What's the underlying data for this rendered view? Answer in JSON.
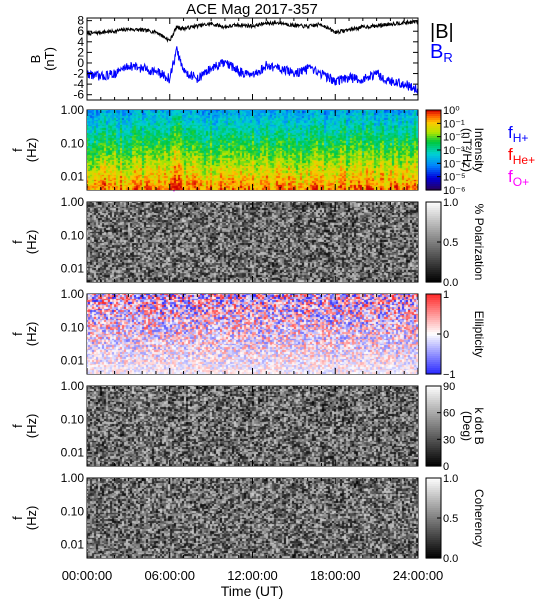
{
  "chart_data": {
    "title": "ACE Mag 2017-357",
    "xlabel": "Time (UT)",
    "x_ticks": [
      "00:00:00",
      "06:00:00",
      "12:00:00",
      "18:00:00",
      "24:00:00"
    ],
    "x_range_hours": [
      0,
      24
    ],
    "panels": [
      {
        "id": "mag",
        "type": "line",
        "ylabel": "B",
        "yunit": "(nT)",
        "ylim": [
          -7,
          8.5
        ],
        "yticks": [
          "8",
          "6",
          "4",
          "2",
          "0",
          "-2",
          "-4",
          "-6"
        ],
        "ytick_values": [
          8,
          6,
          4,
          2,
          0,
          -2,
          -4,
          -6
        ],
        "legend": [
          {
            "label": "|B|",
            "color": "#000000"
          },
          {
            "label": "B_R",
            "label_main": "B",
            "label_sub": "R",
            "color": "#0000ff"
          }
        ],
        "series": [
          {
            "name": "|B|",
            "color": "#000000",
            "points": [
              [
                0,
                5.5
              ],
              [
                1,
                5.8
              ],
              [
                2,
                6.0
              ],
              [
                3,
                6.4
              ],
              [
                4,
                6.2
              ],
              [
                5,
                5.9
              ],
              [
                6,
                4.2
              ],
              [
                6.5,
                6.8
              ],
              [
                7,
                6.5
              ],
              [
                8,
                7.0
              ],
              [
                9,
                7.4
              ],
              [
                10,
                6.8
              ],
              [
                11,
                7.2
              ],
              [
                12,
                7.0
              ],
              [
                13,
                7.5
              ],
              [
                14,
                7.6
              ],
              [
                15,
                7.1
              ],
              [
                16,
                6.9
              ],
              [
                17,
                7.3
              ],
              [
                18,
                5.8
              ],
              [
                19,
                6.3
              ],
              [
                20,
                6.8
              ],
              [
                21,
                7.0
              ],
              [
                22,
                7.4
              ],
              [
                23,
                7.6
              ],
              [
                24,
                7.8
              ]
            ]
          },
          {
            "name": "B_R",
            "color": "#0000ff",
            "points": [
              [
                0,
                -2.0
              ],
              [
                1,
                -2.6
              ],
              [
                2,
                -2.0
              ],
              [
                3,
                -0.5
              ],
              [
                4,
                -1.0
              ],
              [
                5,
                -1.6
              ],
              [
                6,
                -3.0
              ],
              [
                6.5,
                2.5
              ],
              [
                7,
                -1.5
              ],
              [
                8,
                -3.0
              ],
              [
                9,
                -1.0
              ],
              [
                10,
                0.0
              ],
              [
                11,
                -1.5
              ],
              [
                12,
                -2.6
              ],
              [
                13,
                -0.5
              ],
              [
                14,
                -1.0
              ],
              [
                15,
                -2.0
              ],
              [
                16,
                -1.2
              ],
              [
                17,
                -2.0
              ],
              [
                18,
                -3.5
              ],
              [
                19,
                -2.8
              ],
              [
                20,
                -3.2
              ],
              [
                21,
                -2.0
              ],
              [
                22,
                -3.5
              ],
              [
                23,
                -4.0
              ],
              [
                24,
                -5.0
              ]
            ]
          }
        ]
      },
      {
        "id": "intensity",
        "type": "heatmap",
        "ylabel": "f",
        "yunit": "(Hz)",
        "colorbar_title": "Intensity",
        "colorbar_unit": "(nT²/Hz)",
        "colorbar_ticks": [
          "10⁰",
          "10⁻¹",
          "10⁻²",
          "10⁻³",
          "10⁻⁴",
          "10⁻⁵",
          "10⁻⁶"
        ],
        "colormap": "rainbow",
        "legend": [
          {
            "label": "f_H+",
            "label_main": "f",
            "label_sub": "H+",
            "color": "#0000ff"
          },
          {
            "label": "f_He+",
            "label_main": "f",
            "label_sub": "He+",
            "color": "#ff0000"
          },
          {
            "label": "f_O+",
            "label_main": "f",
            "label_sub": "O+",
            "color": "#ff00ff"
          }
        ]
      },
      {
        "id": "polarization",
        "type": "heatmap",
        "ylabel": "f",
        "yunit": "(Hz)",
        "colorbar_title": "% Polarization",
        "colorbar_unit": "",
        "colorbar_ticks": [
          "1.0",
          "0.5",
          "0.0"
        ],
        "colormap": "gray"
      },
      {
        "id": "ellipticity",
        "type": "heatmap",
        "ylabel": "f",
        "yunit": "(Hz)",
        "colorbar_title": "Ellipticity",
        "colorbar_unit": "",
        "colorbar_ticks": [
          "1",
          "0",
          "−1"
        ],
        "colormap": "bwr"
      },
      {
        "id": "kdotb",
        "type": "heatmap",
        "ylabel": "f",
        "yunit": "(Hz)",
        "colorbar_title": "k dot B",
        "colorbar_unit": "(Deg)",
        "colorbar_ticks": [
          "90",
          "60",
          "30",
          "0"
        ],
        "colormap": "gray"
      },
      {
        "id": "coherency",
        "type": "heatmap",
        "ylabel": "f",
        "yunit": "(Hz)",
        "colorbar_title": "Coherency",
        "colorbar_unit": "",
        "colorbar_ticks": [
          "1.0",
          "0.5",
          "0.0"
        ],
        "colormap": "gray"
      }
    ],
    "frequency_axis": {
      "scale": "log",
      "ylim_hz": [
        0.004,
        1.0
      ],
      "yticks": [
        "1.00",
        "0.10",
        "0.01"
      ],
      "ytick_values": [
        1.0,
        0.1,
        0.01
      ]
    },
    "gyrofrequency_curves": [
      {
        "name": "f_H+",
        "color": "#0000ff",
        "points": [
          [
            0,
            0.08
          ],
          [
            2,
            0.085
          ],
          [
            4,
            0.095
          ],
          [
            6,
            0.09
          ],
          [
            6.3,
            0.07
          ],
          [
            6.6,
            0.1
          ],
          [
            7,
            0.085
          ],
          [
            8,
            0.095
          ],
          [
            10,
            0.1
          ],
          [
            12,
            0.095
          ],
          [
            14,
            0.105
          ],
          [
            16,
            0.1
          ],
          [
            18,
            0.085
          ],
          [
            20,
            0.095
          ],
          [
            22,
            0.105
          ],
          [
            24,
            0.11
          ]
        ]
      },
      {
        "name": "f_He+",
        "color": "#ff0000",
        "points": [
          [
            0,
            0.02
          ],
          [
            2,
            0.021
          ],
          [
            4,
            0.024
          ],
          [
            6,
            0.022
          ],
          [
            6.3,
            0.017
          ],
          [
            6.6,
            0.025
          ],
          [
            7,
            0.021
          ],
          [
            8,
            0.024
          ],
          [
            10,
            0.025
          ],
          [
            12,
            0.024
          ],
          [
            14,
            0.026
          ],
          [
            16,
            0.025
          ],
          [
            18,
            0.021
          ],
          [
            20,
            0.024
          ],
          [
            22,
            0.026
          ],
          [
            24,
            0.028
          ]
        ]
      },
      {
        "name": "f_O+",
        "color": "#ff00ff",
        "points": [
          [
            0,
            0.005
          ],
          [
            2,
            0.0053
          ],
          [
            4,
            0.006
          ],
          [
            6,
            0.0056
          ],
          [
            6.3,
            0.0043
          ],
          [
            6.6,
            0.0063
          ],
          [
            7,
            0.0053
          ],
          [
            8,
            0.006
          ],
          [
            10,
            0.0063
          ],
          [
            12,
            0.006
          ],
          [
            14,
            0.0066
          ],
          [
            16,
            0.0063
          ],
          [
            18,
            0.0053
          ],
          [
            20,
            0.006
          ],
          [
            22,
            0.0066
          ],
          [
            24,
            0.007
          ]
        ]
      }
    ]
  }
}
